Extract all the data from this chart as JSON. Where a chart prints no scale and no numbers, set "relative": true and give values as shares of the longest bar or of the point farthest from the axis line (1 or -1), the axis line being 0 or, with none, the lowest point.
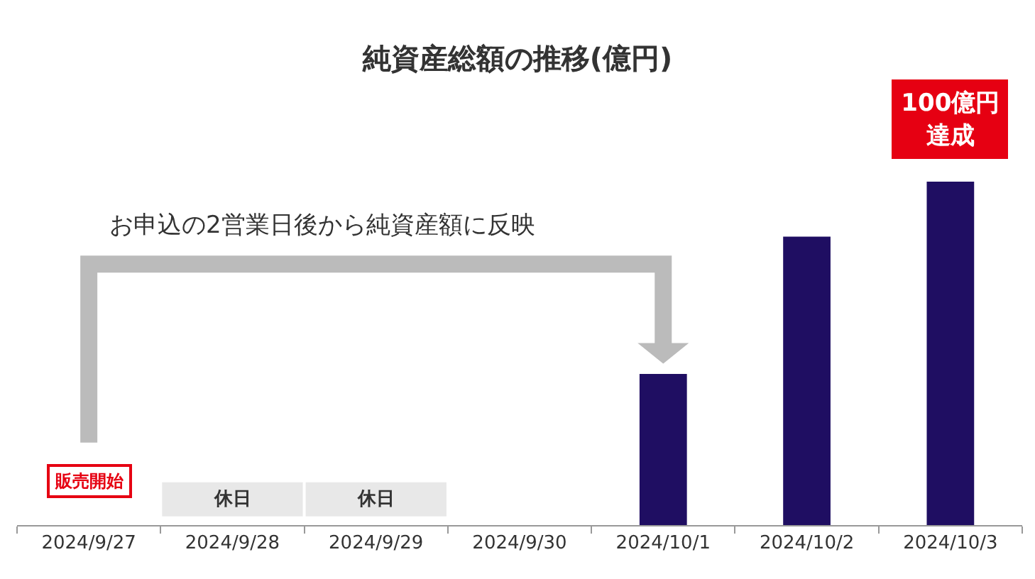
{
  "chart_data": {
    "type": "bar",
    "title": "純資産総額の推移(億円)",
    "relative": true,
    "categories": [
      "2024/9/27",
      "2024/9/28",
      "2024/9/29",
      "2024/9/30",
      "2024/10/1",
      "2024/10/2",
      "2024/10/3"
    ],
    "values": [
      null,
      null,
      null,
      null,
      0.44,
      0.84,
      1
    ],
    "color": "#1f0e62",
    "grid": false,
    "annotations": [
      "お申込の2営業日後から純資産額に反映",
      "販売開始",
      "休日",
      "休日",
      "100億円達成"
    ]
  }
}
